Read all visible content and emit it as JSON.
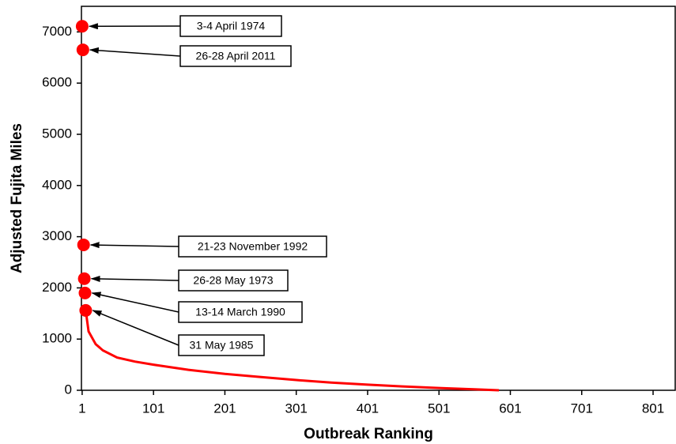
{
  "chart_data": {
    "type": "line",
    "x_label": "Outbreak Ranking",
    "y_label": "Adjusted Fujita Miles",
    "xlim": [
      0,
      832
    ],
    "ylim": [
      0,
      7500
    ],
    "xticks": [
      1,
      101,
      201,
      301,
      401,
      501,
      601,
      701,
      801
    ],
    "yticks": [
      0,
      1000,
      2000,
      3000,
      4000,
      5000,
      6000,
      7000
    ],
    "grid": false,
    "series": [
      {
        "style": "line",
        "color": "#ff0000",
        "x": [
          6,
          10,
          20,
          30,
          50,
          75,
          101,
          150,
          201,
          250,
          301,
          350,
          401,
          450,
          501,
          550,
          585
        ],
        "values": [
          1560,
          1150,
          900,
          780,
          640,
          560,
          500,
          400,
          320,
          260,
          200,
          150,
          110,
          75,
          45,
          20,
          0
        ]
      },
      {
        "style": "markers",
        "color": "#ff0000",
        "x": [
          1,
          2,
          3,
          4,
          5,
          6
        ],
        "values": [
          7110,
          6650,
          2840,
          2180,
          1900,
          1560
        ]
      }
    ],
    "annotations": [
      "3-4 April 1974",
      "26-28 April 2011",
      "21-23 November 1992",
      "26-28 May 1973",
      "13-14 March 1990",
      "31 May 1985"
    ]
  }
}
